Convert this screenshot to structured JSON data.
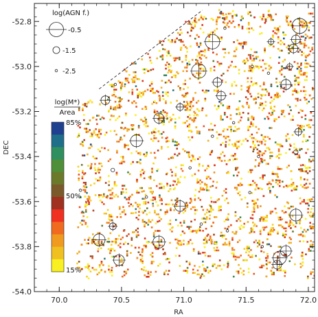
{
  "chart_data": {
    "type": "scatter",
    "title": "",
    "xlabel": "RA",
    "ylabel": "DEC",
    "xlim": [
      69.8,
      72.05
    ],
    "ylim": [
      -54.0,
      -52.72
    ],
    "xticks": [
      "70.0",
      "70.5",
      "71.0",
      "71.5",
      "72.0"
    ],
    "xtick_values": [
      70.0,
      70.5,
      71.0,
      71.5,
      72.0
    ],
    "yticks": [
      "-52.8",
      "-53.0",
      "-53.2",
      "-53.4",
      "-53.6",
      "-53.8",
      "-54.0"
    ],
    "ytick_values": [
      -52.8,
      -53.0,
      -53.2,
      -53.4,
      -53.6,
      -53.8,
      -54.0
    ],
    "size_legend": {
      "title": "log(AGN f.)",
      "entries": [
        {
          "label": "-0.5",
          "value": -0.5
        },
        {
          "label": "-1.5",
          "value": -1.5
        },
        {
          "label": "-2.5",
          "value": -2.5
        }
      ]
    },
    "colorbar": {
      "title_line1": "log(M*)",
      "title_line2": "Area",
      "top_label": "85%",
      "mid_label": "50%",
      "bottom_label": "15%",
      "colors_top_to_bottom": [
        "#1f3f8f",
        "#1f6f8a",
        "#2f8f5f",
        "#4f8f3a",
        "#6a7a2a",
        "#7a5a2a",
        "#a03020",
        "#f03020",
        "#f06a20",
        "#f09a20",
        "#f0c020",
        "#f8f020"
      ]
    },
    "boundary_line": [
      [
        70.32,
        -53.1
      ],
      [
        71.15,
        -52.75
      ]
    ],
    "agn_sources": [
      {
        "ra": 71.93,
        "dec": -52.82,
        "log_agn": -0.5
      },
      {
        "ra": 71.9,
        "dec": -52.88,
        "log_agn": -1.5
      },
      {
        "ra": 71.23,
        "dec": -52.89,
        "log_agn": -0.6
      },
      {
        "ra": 71.88,
        "dec": -52.92,
        "log_agn": -1.5
      },
      {
        "ra": 71.7,
        "dec": -52.89,
        "log_agn": -2.0
      },
      {
        "ra": 71.33,
        "dec": -52.83,
        "log_agn": -2.5
      },
      {
        "ra": 71.12,
        "dec": -53.02,
        "log_agn": -0.6
      },
      {
        "ra": 71.27,
        "dec": -53.07,
        "log_agn": -1.5
      },
      {
        "ra": 71.3,
        "dec": -53.13,
        "log_agn": -1.5
      },
      {
        "ra": 71.82,
        "dec": -53.08,
        "log_agn": -1.3
      },
      {
        "ra": 71.55,
        "dec": -53.0,
        "log_agn": -2.5
      },
      {
        "ra": 71.68,
        "dec": -53.03,
        "log_agn": -2.5
      },
      {
        "ra": 71.85,
        "dec": -53.0,
        "log_agn": -2.0
      },
      {
        "ra": 70.37,
        "dec": -53.15,
        "log_agn": -1.5
      },
      {
        "ra": 70.45,
        "dec": -53.08,
        "log_agn": -2.5
      },
      {
        "ra": 70.8,
        "dec": -53.23,
        "log_agn": -1.3
      },
      {
        "ra": 70.97,
        "dec": -53.18,
        "log_agn": -1.8
      },
      {
        "ra": 71.92,
        "dec": -53.29,
        "log_agn": -1.8
      },
      {
        "ra": 71.9,
        "dec": -53.38,
        "log_agn": -2.2
      },
      {
        "ra": 70.62,
        "dec": -53.33,
        "log_agn": -1.0
      },
      {
        "ra": 71.23,
        "dec": -53.31,
        "log_agn": -2.5
      },
      {
        "ra": 71.05,
        "dec": -53.45,
        "log_agn": -2.5
      },
      {
        "ra": 70.43,
        "dec": -53.46,
        "log_agn": -2.3
      },
      {
        "ra": 71.53,
        "dec": -53.56,
        "log_agn": -2.5
      },
      {
        "ra": 70.97,
        "dec": -53.62,
        "log_agn": -1.2
      },
      {
        "ra": 71.9,
        "dec": -53.66,
        "log_agn": -1.0
      },
      {
        "ra": 70.43,
        "dec": -53.71,
        "log_agn": -1.8
      },
      {
        "ra": 70.32,
        "dec": -53.77,
        "log_agn": -1.0
      },
      {
        "ra": 70.8,
        "dec": -53.78,
        "log_agn": -1.0
      },
      {
        "ra": 70.48,
        "dec": -53.86,
        "log_agn": -1.2
      },
      {
        "ra": 71.77,
        "dec": -53.85,
        "log_agn": -0.8
      },
      {
        "ra": 71.82,
        "dec": -53.82,
        "log_agn": -1.2
      },
      {
        "ra": 71.75,
        "dec": -53.88,
        "log_agn": -1.5
      },
      {
        "ra": 71.63,
        "dec": -53.8,
        "log_agn": -2.5
      },
      {
        "ra": 71.35,
        "dec": -53.73,
        "log_agn": -2.5
      },
      {
        "ra": 70.17,
        "dec": -53.55,
        "log_agn": -2.5
      },
      {
        "ra": 71.4,
        "dec": -53.25,
        "log_agn": -2.5
      },
      {
        "ra": 71.6,
        "dec": -53.4,
        "log_agn": -2.5
      },
      {
        "ra": 70.7,
        "dec": -53.58,
        "log_agn": -2.5
      },
      {
        "ra": 71.14,
        "dec": -53.7,
        "log_agn": -2.5
      }
    ]
  }
}
